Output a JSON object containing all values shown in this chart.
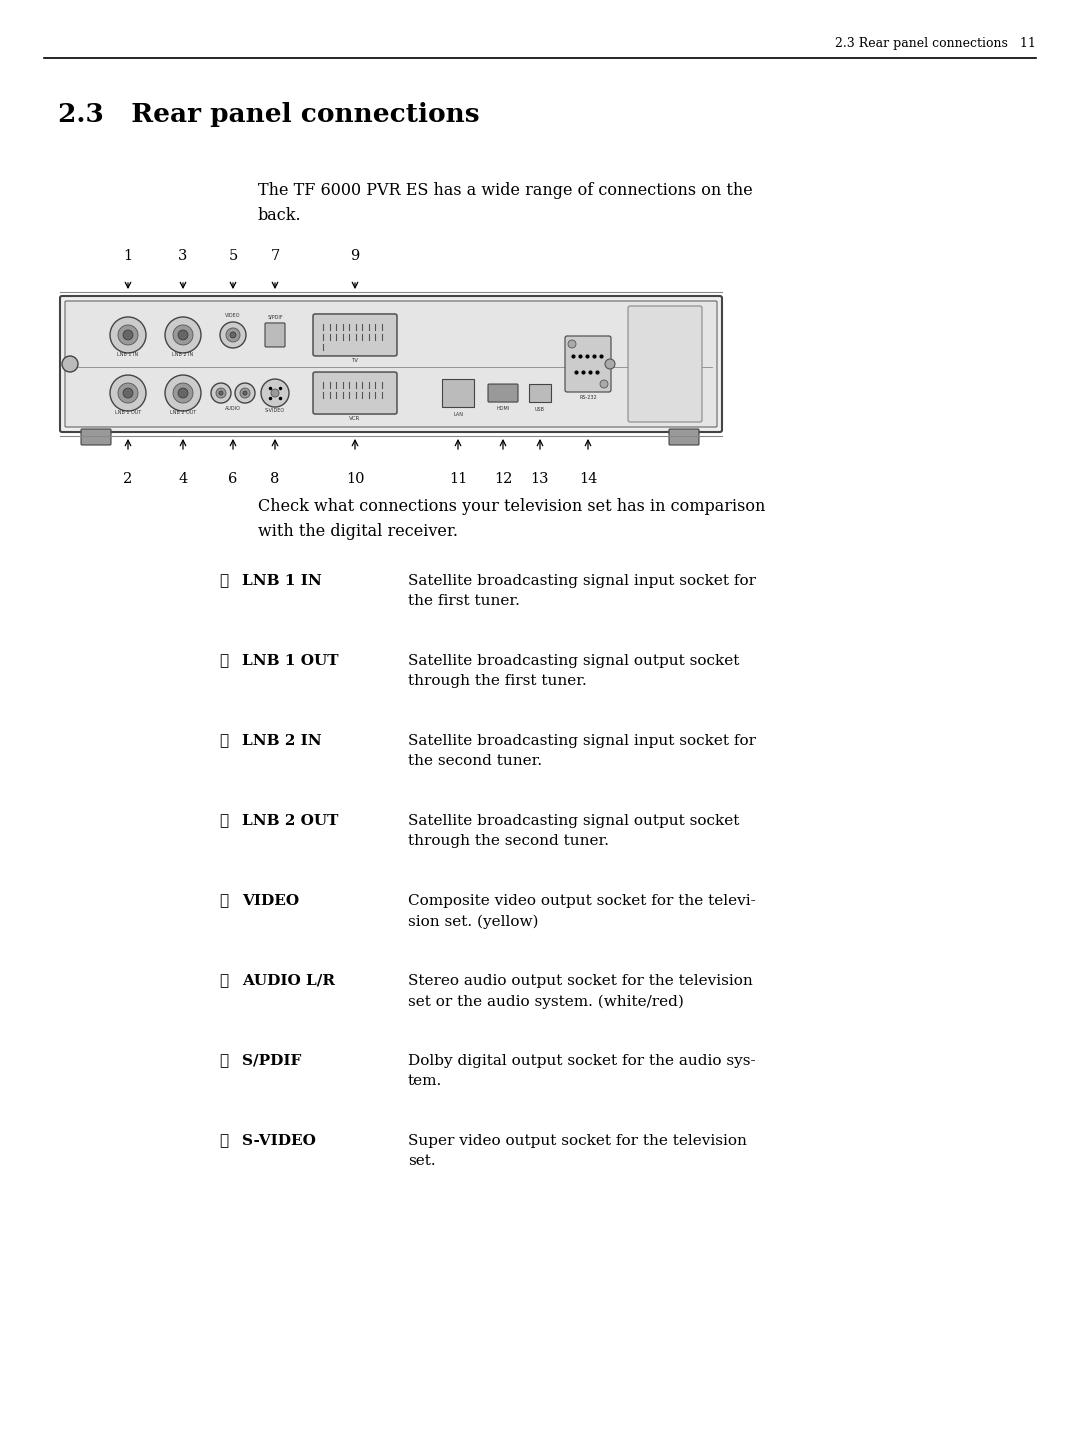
{
  "page_header": "2.3 Rear panel connections   11",
  "section_title": "2.3   Rear panel connections",
  "intro_text": "The TF 6000 PVR ES has a wide range of connections on the\nback.",
  "check_text": "Check what connections your television set has in comparison\nwith the digital receiver.",
  "bg_color": "#ffffff",
  "text_color": "#000000",
  "connections": [
    {
      "num": "①",
      "label": "LNB 1 IN",
      "label_bold": true,
      "desc": "Satellite broadcasting signal input socket for\nthe first tuner."
    },
    {
      "num": "②",
      "label": "LNB 1 OUT",
      "label_bold": true,
      "desc": "Satellite broadcasting signal output socket\nthrough the first tuner."
    },
    {
      "num": "③",
      "label": "LNB 2 IN",
      "label_bold": true,
      "desc": "Satellite broadcasting signal input socket for\nthe second tuner."
    },
    {
      "num": "④",
      "label": "LNB 2 OUT",
      "label_bold": true,
      "desc": "Satellite broadcasting signal output socket\nthrough the second tuner."
    },
    {
      "num": "⑤",
      "label": "VIDEO",
      "label_bold": true,
      "desc": "Composite video output socket for the televi-\nsion set. (yellow)"
    },
    {
      "num": "⑥",
      "label": "AUDIO L/R",
      "label_bold": true,
      "desc": "Stereo audio output socket for the television\nset or the audio system. (white/red)"
    },
    {
      "num": "⑦",
      "label": "S/PDIF",
      "label_bold": true,
      "desc": "Dolby digital output socket for the audio sys-\ntem."
    },
    {
      "num": "⑧",
      "label": "S-VIDEO",
      "label_bold": true,
      "desc": "Super video output socket for the television\nset."
    }
  ]
}
